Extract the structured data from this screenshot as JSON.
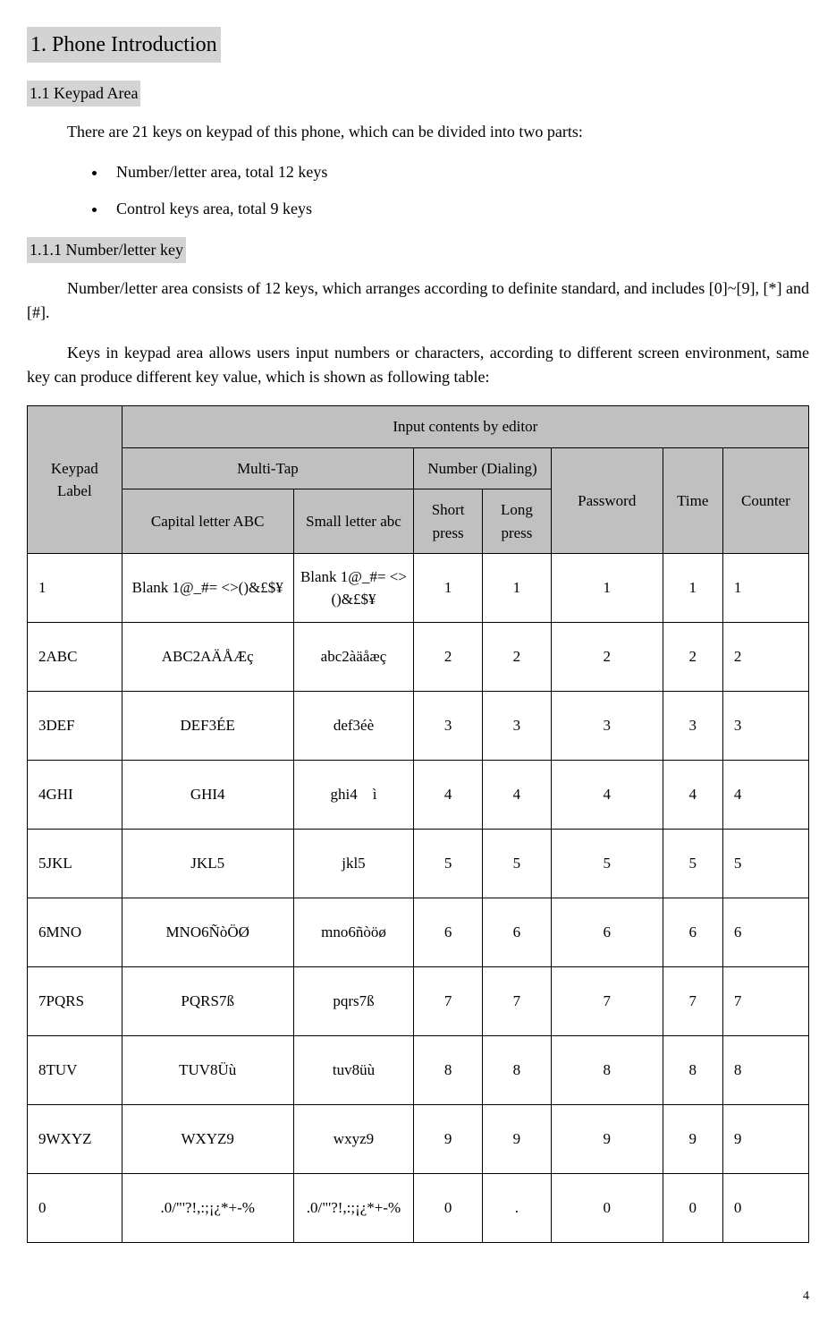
{
  "headings": {
    "h1": "1. Phone Introduction",
    "h2": "1.1 Keypad Area",
    "h3": "1.1.1 Number/letter key"
  },
  "paragraphs": {
    "p1": "There are 21 keys on keypad of this phone, which can be divided into two parts:",
    "li1": "Number/letter area, total 12 keys",
    "li2": "Control keys area, total 9 keys",
    "p2": "Number/letter area consists of 12 keys, which arranges according to definite standard, and includes [0]~[9], [*] and [#].",
    "p3": "Keys in keypad area allows users input numbers or characters, according to different screen environment, same key can produce different key value, which is shown as following table:"
  },
  "table": {
    "headers": {
      "keypad_label": "Keypad Label",
      "input_contents": "Input contents by editor",
      "multi_tap": "Multi-Tap",
      "number_dialing": "Number (Dialing)",
      "password": "Password",
      "time": "Time",
      "counter": "Counter",
      "capital_letter": "Capital letter ABC",
      "small_letter": "Small letter abc",
      "short_press": "Short press",
      "long_press": "Long press"
    },
    "rows": [
      {
        "label": "1",
        "cap": "Blank 1@_#= <>()&£$¥",
        "small": "Blank 1@_#= <>()&£$¥",
        "short": "1",
        "long": "1",
        "pass": "1",
        "time": "1",
        "counter": "1"
      },
      {
        "label": "2ABC",
        "cap": "ABC2AÄÅÆç",
        "small": "abc2àäåæç",
        "short": "2",
        "long": "2",
        "pass": "2",
        "time": "2",
        "counter": "2"
      },
      {
        "label": "3DEF",
        "cap": "DEF3ÉE",
        "small": "def3éè",
        "short": "3",
        "long": "3",
        "pass": "3",
        "time": "3",
        "counter": "3"
      },
      {
        "label": "4GHI",
        "cap": "GHI4",
        "small": "ghi4　ì",
        "short": "4",
        "long": "4",
        "pass": "4",
        "time": "4",
        "counter": "4"
      },
      {
        "label": "5JKL",
        "cap": "JKL5",
        "small": "jkl5",
        "short": "5",
        "long": "5",
        "pass": "5",
        "time": "5",
        "counter": "5"
      },
      {
        "label": "6MNO",
        "cap": "MNO6ÑòÖØ",
        "small": "mno6ñòöø",
        "short": "6",
        "long": "6",
        "pass": "6",
        "time": "6",
        "counter": "6"
      },
      {
        "label": "7PQRS",
        "cap": "PQRS7ß",
        "small": "pqrs7ß",
        "short": "7",
        "long": "7",
        "pass": "7",
        "time": "7",
        "counter": "7"
      },
      {
        "label": "8TUV",
        "cap": "TUV8Üù",
        "small": "tuv8üù",
        "short": "8",
        "long": "8",
        "pass": "8",
        "time": "8",
        "counter": "8"
      },
      {
        "label": "9WXYZ",
        "cap": "WXYZ9",
        "small": "wxyz9",
        "short": "9",
        "long": "9",
        "pass": "9",
        "time": "9",
        "counter": "9"
      },
      {
        "label": "0",
        "cap": ".0/\"'?!,:;¡¿*+-%",
        "small": ".0/\"'?!,:;¡¿*+-%",
        "short": "0",
        "long": ".",
        "pass": "0",
        "time": "0",
        "counter": "0"
      }
    ]
  },
  "page_number": "4"
}
